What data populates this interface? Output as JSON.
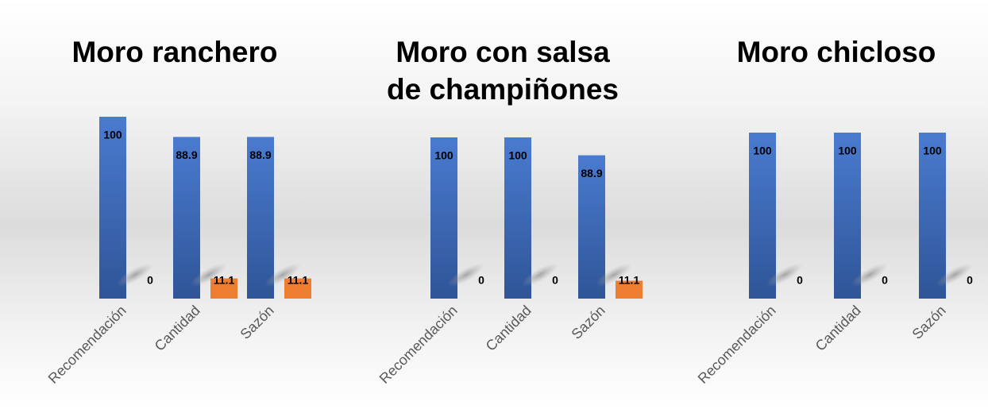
{
  "chart_data": [
    {
      "type": "bar",
      "title": "Moro ranchero",
      "categories": [
        "Recomendación",
        "Cantidad",
        "Sazón"
      ],
      "series": [
        {
          "color": "#4472c4",
          "values": [
            100,
            88.9,
            88.9
          ]
        },
        {
          "color": "#ed7d31",
          "values": [
            0,
            11.1,
            11.1
          ]
        }
      ],
      "ylim": [
        0,
        100
      ]
    },
    {
      "type": "bar",
      "title": "Moro con salsa de champiñones",
      "categories": [
        "Recomendación",
        "Cantidad",
        "Sazón"
      ],
      "series": [
        {
          "color": "#4472c4",
          "values": [
            100,
            100,
            88.9
          ]
        },
        {
          "color": "#ed7d31",
          "values": [
            0,
            0,
            11.1
          ]
        }
      ],
      "ylim": [
        0,
        100
      ]
    },
    {
      "type": "bar",
      "title": "Moro chicloso",
      "categories": [
        "Recomendación",
        "Cantidad",
        "Sazón"
      ],
      "series": [
        {
          "color": "#4472c4",
          "values": [
            100,
            100,
            100
          ]
        },
        {
          "color": "#ed7d31",
          "values": [
            0,
            0,
            0
          ]
        }
      ],
      "ylim": [
        0,
        100
      ]
    }
  ]
}
